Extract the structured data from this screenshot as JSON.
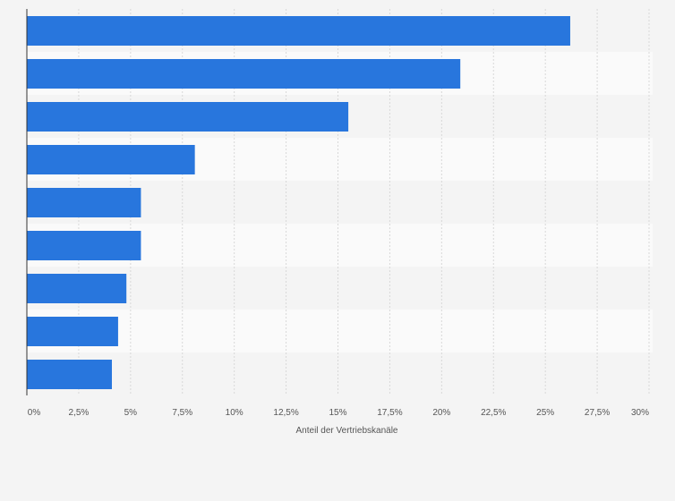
{
  "chart_data": {
    "type": "bar",
    "orientation": "horizontal",
    "title": "",
    "xlabel": "Anteil der Vertriebskanäle",
    "ylabel": "",
    "categories": [
      "",
      "",
      "",
      "",
      "",
      "",
      "",
      "",
      ""
    ],
    "values": [
      26.2,
      20.9,
      15.5,
      8.1,
      5.5,
      5.5,
      4.8,
      4.4,
      4.1
    ],
    "xlim": [
      0,
      30
    ],
    "xticks": [
      "0%",
      "2,5%",
      "5%",
      "7,5%",
      "10%",
      "12,5%",
      "15%",
      "17,5%",
      "20%",
      "22,5%",
      "25%",
      "27,5%",
      "30%"
    ],
    "grid": true,
    "colors": {
      "bar": "#2876dd",
      "band_light": "#fafafa",
      "band_dark": "#f4f4f4",
      "grid": "#d8d8d8",
      "axis": "#333333"
    }
  }
}
